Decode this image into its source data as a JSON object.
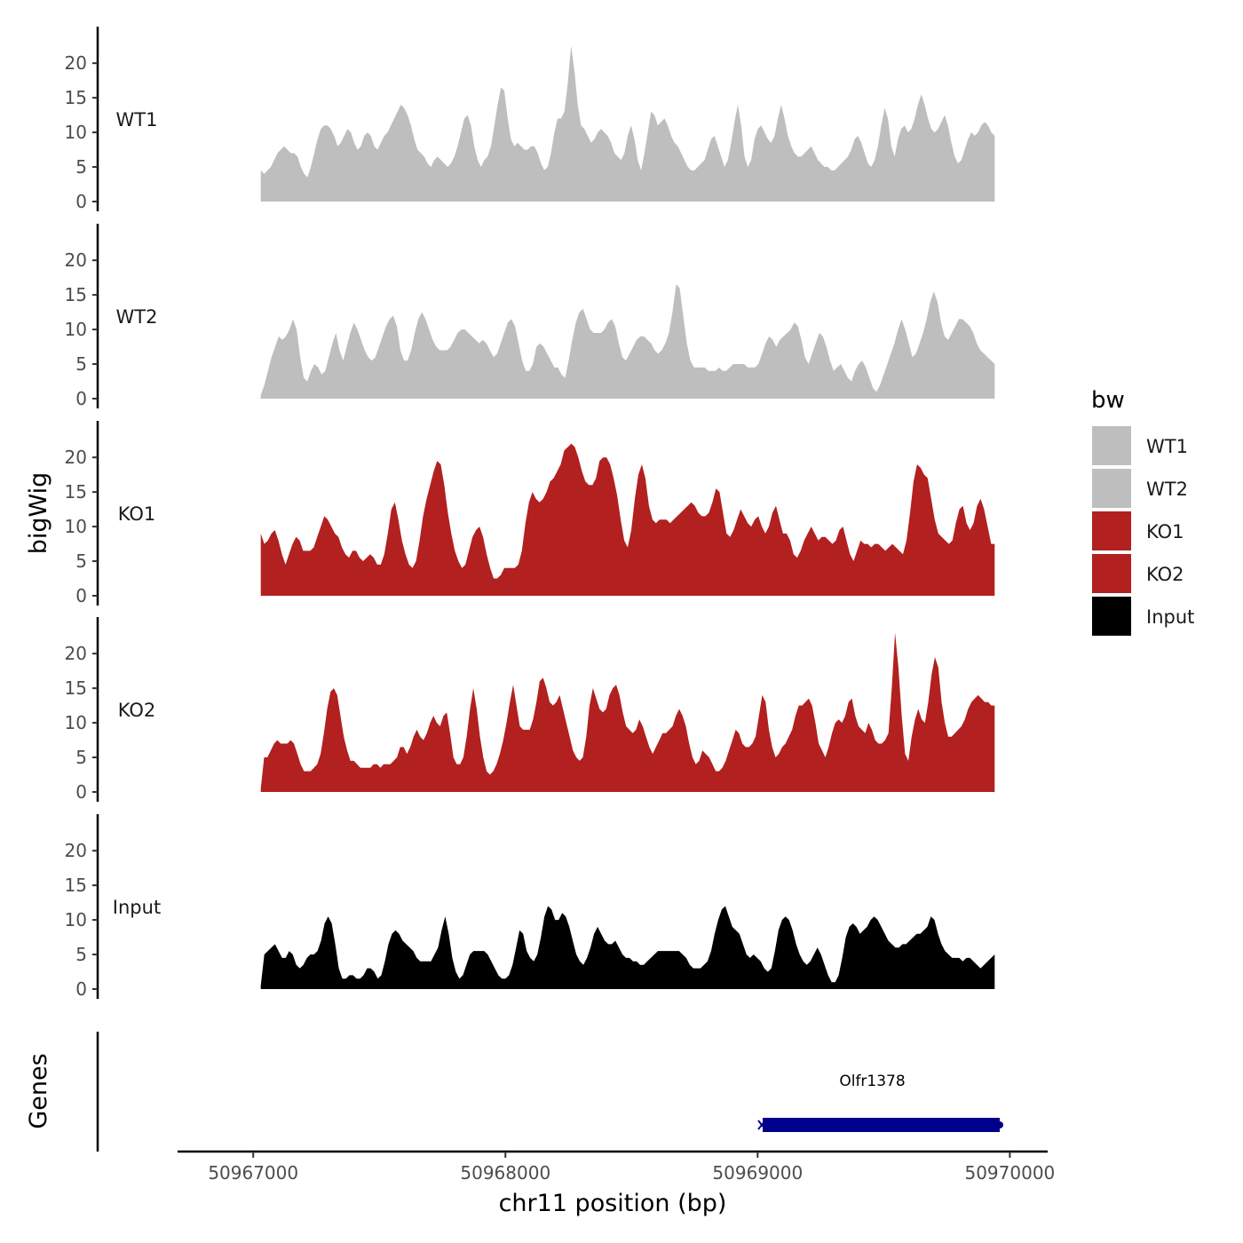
{
  "chart_data": {
    "type": "area",
    "chromosome": "chr11",
    "xlabel": "chr11 position (bp)",
    "ylabel": "bigWig",
    "gene_track_label": "Genes",
    "xlim": [
      50966700,
      50970150
    ],
    "x_ticks": [
      50967000,
      50968000,
      50969000,
      50970000
    ],
    "x_tick_labels": [
      "50967000",
      "50968000",
      "50969000",
      "50970000"
    ],
    "ylim": [
      0,
      24
    ],
    "y_ticks": [
      0,
      5,
      10,
      15,
      20
    ],
    "y_tick_labels": [
      "0",
      "5",
      "10",
      "15",
      "20"
    ],
    "x_range": [
      50967030,
      50969940
    ],
    "legend": {
      "title": "bw",
      "entries": [
        {
          "name": "WT1",
          "color": "#bebebe"
        },
        {
          "name": "WT2",
          "color": "#bebebe"
        },
        {
          "name": "KO1",
          "color": "#b22020"
        },
        {
          "name": "KO2",
          "color": "#b22020"
        },
        {
          "name": "Input",
          "color": "#000000"
        }
      ]
    },
    "series": [
      {
        "name": "WT1",
        "color": "#bebebe",
        "values": [
          4.5,
          4,
          4.5,
          5,
          6,
          7,
          7.5,
          8,
          7.5,
          7,
          7,
          6.5,
          5,
          4,
          3.5,
          5,
          7,
          9,
          10.5,
          11,
          11,
          10.5,
          9.5,
          8,
          8.5,
          9.5,
          10.5,
          10,
          8.5,
          7.5,
          8,
          9.5,
          10,
          9.5,
          8,
          7.5,
          8.5,
          9.5,
          10,
          11,
          12,
          13,
          14,
          13.5,
          12.5,
          11,
          9,
          7.5,
          7,
          6.5,
          5.5,
          5,
          6,
          6.5,
          6,
          5.5,
          5,
          5.5,
          6.5,
          8,
          10,
          12,
          12.5,
          11,
          8,
          6,
          5,
          6,
          6.5,
          8,
          11,
          14,
          16.5,
          16,
          12,
          9,
          8,
          8.5,
          8,
          7.5,
          7.5,
          8,
          8,
          7,
          5.5,
          4.5,
          5,
          7,
          10,
          12,
          12,
          13,
          17,
          22.5,
          19,
          14,
          11,
          10.5,
          9.5,
          8.5,
          9,
          10,
          10.5,
          10,
          9.5,
          8.5,
          7,
          6.5,
          6,
          7,
          9.5,
          11,
          9,
          6,
          4.5,
          7,
          10,
          13,
          12.5,
          11,
          11.5,
          12,
          11,
          9.5,
          8.5,
          8,
          7,
          6,
          5,
          4.5,
          4.5,
          5,
          5.5,
          6,
          7.5,
          9,
          9.5,
          8,
          6.5,
          5,
          6,
          8.5,
          11.5,
          14,
          11,
          6.5,
          5,
          6,
          9,
          10.5,
          11,
          10,
          9,
          8.5,
          9.5,
          12,
          14,
          12,
          9.5,
          8,
          7,
          6.5,
          6.5,
          7,
          7.5,
          8,
          7,
          6,
          5.5,
          5
        ],
        "extra": [
          5,
          4.5,
          4.5,
          5,
          5.5,
          6,
          6.5,
          7.5,
          9,
          9.5,
          8.5,
          7,
          5.5,
          5,
          6,
          8,
          11,
          13.5,
          12,
          8,
          6.5,
          9,
          10.5,
          11,
          10,
          10.5,
          12,
          14,
          15.5,
          14,
          12,
          10.5,
          10,
          10.5,
          11.5,
          12.5,
          11,
          8.5,
          6.5,
          5.5,
          6,
          7.5,
          9,
          10,
          9.5,
          10,
          11,
          11.5,
          11,
          10,
          9.5
        ]
      },
      {
        "name": "WT2",
        "color": "#bebebe",
        "values": [
          0.5,
          2,
          4,
          6,
          7.5,
          9,
          8.5,
          9,
          10,
          11.5,
          10,
          6,
          3,
          2.5,
          4,
          5,
          4.5,
          3.5,
          4,
          6,
          8,
          9.5,
          7,
          5.5,
          7.5,
          9.5,
          11,
          10,
          8.5,
          7,
          6,
          5.5,
          6,
          7.5,
          9,
          10.5,
          11.5,
          12,
          10.5,
          7,
          5.5,
          5.5,
          7,
          9.5,
          11.5,
          12.5,
          11.5,
          10,
          8.5,
          7.5,
          7,
          7,
          7,
          7.5,
          8.5,
          9.5,
          10,
          10,
          9.5,
          9,
          8.5,
          8,
          8.5,
          8,
          7,
          6,
          6.5,
          8,
          9.5,
          11,
          11.5,
          10.5,
          8,
          5.5,
          4,
          4,
          5,
          7.5,
          8,
          7.5,
          6.5,
          5.5,
          4.5,
          4.5,
          3.5,
          3,
          5.5,
          8.5,
          11,
          12.5,
          13,
          11.5,
          10,
          9.5,
          9.5,
          9.5,
          10,
          11,
          11.5,
          10.5,
          8,
          6,
          5.5,
          6.5,
          7.5,
          8.5,
          9,
          9,
          8.5,
          8,
          7,
          6.5,
          7,
          8,
          9.5,
          12.5,
          16.5,
          16,
          12,
          8,
          5.5,
          4.5,
          4.5,
          4.5,
          4.5,
          4,
          4,
          4,
          4.5,
          4,
          4,
          4.5,
          5,
          5,
          5,
          5,
          4.5,
          4.5,
          4.5,
          5,
          6.5,
          8,
          9,
          8.5,
          7.5,
          8.5,
          9,
          9.5,
          10,
          11,
          10.5,
          8.5,
          6,
          5,
          6.5,
          8,
          9.5,
          9,
          7.5,
          5.5,
          4,
          4.5,
          5,
          4,
          3
        ],
        "extra": [
          2.5,
          4,
          5,
          5.5,
          4.5,
          3,
          1.5,
          1,
          2,
          3.5,
          5,
          6.5,
          8,
          10,
          11.5,
          10,
          8,
          6,
          6.5,
          8,
          9.5,
          11.5,
          14,
          15.5,
          14,
          11,
          9,
          8.5,
          9.5,
          10.5,
          11.5,
          11.5,
          11,
          10.5,
          9.5,
          8,
          7,
          6.5,
          6,
          5.5,
          5
        ]
      },
      {
        "name": "KO1",
        "color": "#b22020",
        "values": [
          9,
          7.5,
          8,
          9,
          9.5,
          8,
          6,
          4.5,
          6,
          7.5,
          8.5,
          8,
          6.5,
          6.5,
          6.5,
          7,
          8.5,
          10,
          11.5,
          11,
          10,
          9,
          8.5,
          7,
          6,
          5.5,
          6.5,
          6.5,
          5.5,
          5,
          5.5,
          6,
          5.5,
          4.5,
          4.5,
          6,
          9,
          12.5,
          13.5,
          11,
          8,
          6,
          4.5,
          4,
          5,
          8,
          11.5,
          14,
          16,
          18,
          19.5,
          19,
          16,
          12,
          9,
          6.5,
          5,
          4,
          4.5,
          6.5,
          8.5,
          9.5,
          10,
          8.5,
          6,
          4,
          2.5,
          2.5,
          3,
          4,
          4,
          4,
          4,
          4.5,
          6.5,
          10.5,
          13.5,
          15,
          14,
          13.5,
          14,
          15,
          16.5,
          17,
          18,
          19,
          21,
          21.5,
          22,
          21.5,
          20,
          18,
          16.5,
          16,
          16,
          17,
          19.5,
          20,
          20,
          19,
          17,
          14.5,
          11,
          8,
          7,
          9.5,
          14,
          17.5,
          19,
          17,
          13,
          11,
          10.5,
          11,
          11,
          11,
          10.5,
          11,
          11.5,
          12,
          12.5,
          13,
          13.5,
          13,
          12,
          11.5,
          11.5,
          12,
          13.5,
          15.5,
          15,
          12,
          9,
          8.5,
          9.5,
          11,
          12.5,
          11.5,
          10.5,
          10,
          11,
          11.5,
          10,
          9,
          10,
          12,
          13,
          11,
          9,
          9,
          8,
          6,
          5.5,
          6.5,
          8,
          9,
          10,
          9,
          8,
          8.5,
          8.5,
          8,
          7.5
        ],
        "extra": [
          8,
          9.5,
          10,
          8,
          6,
          5,
          6.5,
          8,
          7.5,
          7.5,
          7,
          7.5,
          7.5,
          7,
          6.5,
          7,
          7.5,
          7,
          6.5,
          6,
          8,
          12,
          16.5,
          19,
          18.5,
          17.5,
          17,
          14,
          11,
          9,
          8.5,
          8,
          7.5,
          8,
          10.5,
          12.5,
          13,
          10.5,
          9.5,
          10.5,
          13,
          14,
          12.5,
          10,
          7.5,
          7.5
        ]
      },
      {
        "name": "KO2",
        "color": "#b22020",
        "values": [
          0.5,
          5,
          5,
          6,
          7,
          7.5,
          7,
          7,
          7,
          7.5,
          7,
          5.5,
          4,
          3,
          3,
          3,
          3.5,
          4,
          5.5,
          8.5,
          12,
          14.5,
          15,
          14,
          11,
          8,
          6,
          4.5,
          4.5,
          4,
          3.5,
          3.5,
          3.5,
          3.5,
          4,
          4,
          3.5,
          4,
          4,
          4,
          4.5,
          5,
          6.5,
          6.5,
          5.5,
          6.5,
          8,
          9,
          8,
          7.5,
          8.5,
          10,
          11,
          10,
          9.5,
          11,
          11.5,
          8.5,
          5,
          4,
          4,
          5,
          8,
          12,
          15,
          12,
          8,
          5,
          3,
          2.5,
          3,
          4,
          5.5,
          7.5,
          10,
          13,
          15.5,
          12.5,
          9.5,
          9,
          9,
          9,
          10.5,
          13,
          16,
          16.5,
          15,
          13,
          12.5,
          13,
          14,
          12,
          10,
          8,
          6,
          5,
          4.5,
          5,
          8,
          12.5,
          15,
          13.5,
          12,
          11.5,
          12,
          14,
          15,
          15.5,
          14,
          11.5,
          9.5,
          9,
          8.5,
          9,
          10.5,
          9.5,
          8,
          6.5,
          5.5,
          6.5,
          7.5,
          8.5,
          8.5,
          9,
          9.5,
          11,
          12,
          11,
          9.5,
          7,
          5,
          4,
          4.5,
          6,
          5.5,
          5,
          4,
          3,
          3,
          3.5,
          4.5,
          6,
          7.5,
          9,
          8.5,
          7,
          6.5,
          6.5,
          7,
          8,
          11,
          14,
          13,
          9,
          6.5,
          5,
          5.5,
          6.5,
          7,
          8,
          9,
          11,
          12.5,
          12.5,
          13,
          13.5,
          12.5,
          10
        ],
        "extra": [
          7,
          6,
          5,
          6.5,
          8.5,
          10,
          10.5,
          10,
          11,
          13,
          13.5,
          11,
          9.5,
          9,
          8.5,
          10,
          9,
          7.5,
          7,
          7,
          7.5,
          8.5,
          15,
          23,
          18,
          11,
          5.5,
          4.5,
          8,
          10.5,
          12,
          10.5,
          10,
          13,
          17,
          19.5,
          18,
          13,
          10,
          8,
          8,
          8.5,
          9,
          9.5,
          10.5,
          12,
          13,
          13.5,
          14,
          13.5,
          13,
          13,
          12.5,
          12.5
        ]
      },
      {
        "name": "Input",
        "color": "#000000",
        "values": [
          0.5,
          5,
          5.5,
          6,
          6.5,
          5.5,
          4.5,
          4.5,
          5.5,
          5,
          3.5,
          3,
          3.5,
          4.5,
          5,
          5,
          5.5,
          7,
          9.5,
          10.5,
          9.5,
          6.5,
          3,
          1.5,
          1.5,
          2,
          2,
          1.5,
          1.5,
          2,
          3,
          3,
          2.5,
          1.5,
          2,
          4,
          6.5,
          8,
          8.5,
          8,
          7,
          6.5,
          6,
          5.5,
          4.5,
          4,
          4,
          4,
          4,
          5,
          6,
          8.5,
          10.5,
          8,
          4.5,
          2.5,
          1.5,
          2,
          3.5,
          5,
          5.5,
          5.5,
          5.5,
          5.5,
          5,
          4,
          3,
          2,
          1.5,
          1.5,
          2,
          3.5,
          6,
          8.5,
          8,
          5.5,
          4.5,
          4,
          5,
          7.5,
          10.5,
          12,
          11.5,
          10,
          10,
          11,
          10.5,
          9,
          7,
          5,
          4,
          3.5,
          4.5,
          6,
          8,
          9,
          8,
          7,
          6.5,
          6.5,
          7,
          6,
          5,
          4.5,
          4.5,
          4,
          4,
          3.5,
          3.5,
          4,
          4.5,
          5,
          5.5,
          5.5,
          5.5,
          5.5,
          5.5,
          5.5,
          5.5,
          5,
          4.5,
          3.5,
          3,
          3,
          3,
          3.5,
          4,
          5.5,
          8,
          10,
          11.5,
          12,
          10.5,
          9,
          8.5,
          8,
          6.5,
          5,
          4.5,
          5,
          4.5,
          4,
          3,
          2.5,
          3,
          5.5,
          8.5,
          10,
          10.5,
          10,
          8.5,
          6.5,
          5,
          4,
          3.5,
          4,
          5,
          6,
          5
        ],
        "extra": [
          3.5,
          2,
          1,
          1,
          2,
          4.5,
          7.5,
          9,
          9.5,
          9,
          8,
          8.5,
          9,
          10,
          10.5,
          10,
          9,
          8,
          7,
          6.5,
          6,
          6,
          6.5,
          6.5,
          7,
          7.5,
          8,
          8,
          8.5,
          9,
          10.5,
          10,
          8,
          6.5,
          5.5,
          5,
          4.5,
          4.5,
          4.5,
          4,
          4.5,
          4.5,
          4,
          3.5,
          3,
          3.5,
          4,
          4.5,
          5
        ]
      }
    ],
    "genes": [
      {
        "name": "Olfr1378",
        "start": 50969020,
        "end": 50969960,
        "strand": "+",
        "color": "#00008b"
      }
    ]
  }
}
